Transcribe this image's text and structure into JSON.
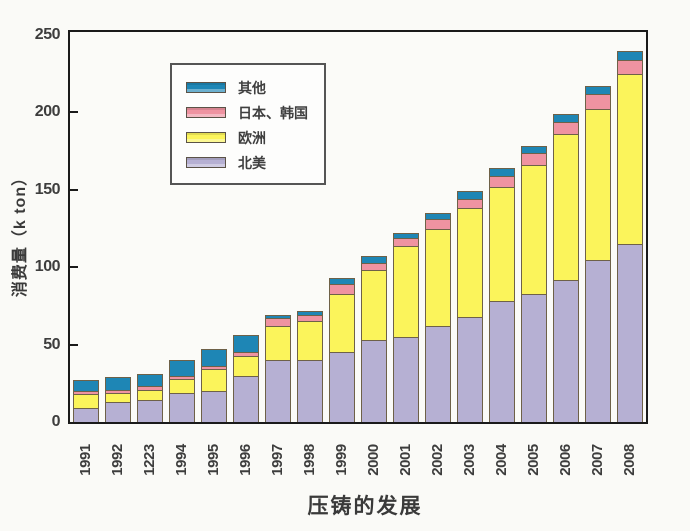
{
  "page": {
    "background": "#fafaf7"
  },
  "axes": {
    "y_title": "消费量（k ton）",
    "x_title": "压铸的发展",
    "y_tick_labels": [
      "0",
      "50",
      "100",
      "150",
      "200",
      "250"
    ]
  },
  "legend": {
    "items": [
      {
        "label": "其他",
        "color": "#1e86b5"
      },
      {
        "label": "日本、韩国",
        "color": "#ef93a1"
      },
      {
        "label": "欧洲",
        "color": "#fbf45b"
      },
      {
        "label": "北美",
        "color": "#b6b0d3"
      }
    ]
  },
  "chart_data": {
    "type": "bar",
    "stacked": true,
    "title": "",
    "xlabel": "压铸的发展",
    "ylabel": "消费量（k ton）",
    "categories": [
      "1991",
      "1992",
      "1223",
      "1994",
      "1995",
      "1996",
      "1997",
      "1998",
      "1999",
      "2000",
      "2001",
      "2002",
      "2003",
      "2004",
      "2005",
      "2006",
      "2007",
      "2008"
    ],
    "series": [
      {
        "name": "北美",
        "color": "#b6b0d3",
        "values": [
          9,
          13,
          14,
          19,
          20,
          30,
          40,
          40,
          45,
          53,
          55,
          62,
          68,
          78,
          83,
          92,
          105,
          115
        ]
      },
      {
        "name": "欧洲",
        "color": "#fbf45b",
        "values": [
          9,
          6,
          7,
          9,
          14,
          13,
          22,
          25,
          38,
          45,
          59,
          63,
          70,
          74,
          83,
          94,
          97,
          110
        ]
      },
      {
        "name": "日本、韩国",
        "color": "#ef93a1",
        "values": [
          2,
          2,
          2,
          2,
          2,
          2,
          5,
          4,
          6,
          5,
          5,
          6,
          6,
          7,
          8,
          8,
          10,
          9
        ]
      },
      {
        "name": "其他",
        "color": "#1e86b5",
        "values": [
          7,
          8,
          8,
          10,
          11,
          11,
          2,
          3,
          4,
          4,
          3,
          4,
          5,
          5,
          4,
          5,
          5,
          6
        ]
      }
    ],
    "ylim": [
      0,
      250
    ],
    "yticks": [
      0,
      50,
      100,
      150,
      200,
      250
    ],
    "grid": false,
    "legend_position": "upper left inside plot",
    "x_tick_rotation_deg": 90,
    "notes": "stacked bar chart; x label for 1993 is misprinted as 1223 in source image"
  }
}
